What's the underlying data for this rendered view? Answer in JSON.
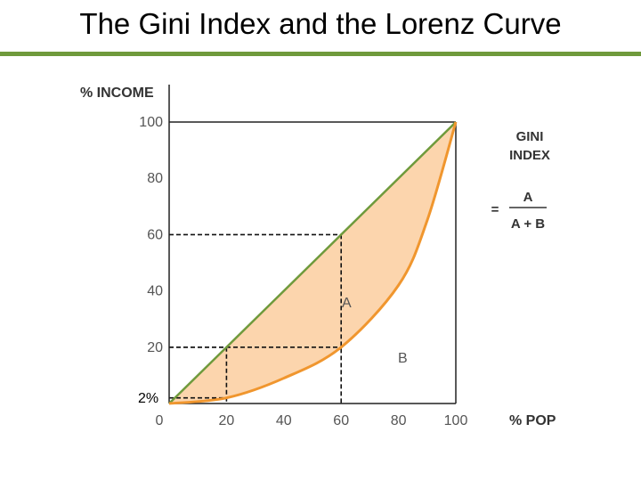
{
  "slide": {
    "title": "The Gini Index and the Lorenz Curve"
  },
  "colors": {
    "title_rule": "#6f9a3c",
    "equality_line": "#6f9a3c",
    "lorenz_curve": "#f0962e",
    "area_a_fill": "#fcd5ad"
  },
  "chart_data": {
    "type": "line",
    "ylabel": "% INCOME",
    "xlabel": "% POP",
    "xlim": [
      0,
      100
    ],
    "ylim": [
      0,
      100
    ],
    "x_ticks": [
      "0",
      "20",
      "40",
      "60",
      "80",
      "100"
    ],
    "y_ticks": [
      "20",
      "40",
      "60",
      "80",
      "100"
    ],
    "series": [
      {
        "values": [
          [
            0,
            0
          ],
          [
            100,
            100
          ]
        ]
      },
      {
        "values": [
          [
            0,
            0
          ],
          [
            20,
            2
          ],
          [
            40,
            9
          ],
          [
            60,
            20
          ],
          [
            80,
            42
          ],
          [
            90,
            65
          ],
          [
            100,
            100
          ]
        ]
      }
    ],
    "reference_points": [
      {
        "x": 20,
        "y": 20
      },
      {
        "x": 60,
        "y": 60
      },
      {
        "x": 20,
        "y": 2
      },
      {
        "x": 60,
        "y": 20
      }
    ],
    "annotations": {
      "marker_2": "2%",
      "area_a": "A",
      "area_b": "B"
    },
    "gini_formula": {
      "title_line1": "GINI",
      "title_line2": "INDEX",
      "equals": "=",
      "numerator": "A",
      "denominator": "A + B"
    }
  }
}
